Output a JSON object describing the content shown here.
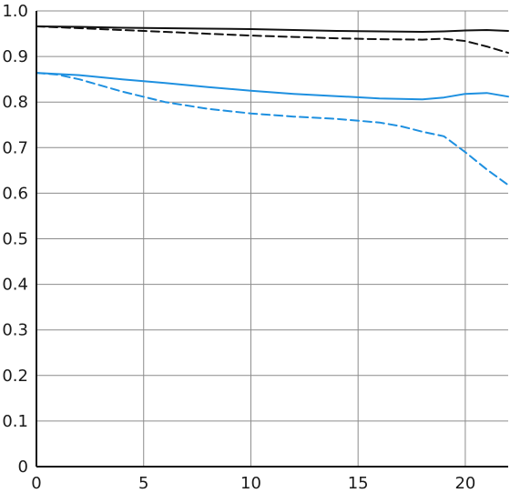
{
  "chart_data": {
    "type": "line",
    "title": "",
    "xlabel": "",
    "ylabel": "",
    "xlim": [
      0,
      22
    ],
    "ylim": [
      0,
      1.0
    ],
    "grid": true,
    "legend": "none",
    "x_ticks": [
      0,
      5,
      10,
      15,
      20
    ],
    "x_tick_labels": [
      "0",
      "5",
      "10",
      "15",
      "20"
    ],
    "y_ticks": [
      0,
      0.1,
      0.2,
      0.3,
      0.4,
      0.5,
      0.6,
      0.7,
      0.8,
      0.9,
      1.0
    ],
    "y_tick_labels": [
      "0",
      "0.1",
      "0.2",
      "0.3",
      "0.4",
      "0.5",
      "0.6",
      "0.7",
      "0.8",
      "0.9",
      "1.0"
    ],
    "series": [
      {
        "color": "#111111",
        "dash": "solid",
        "points": [
          [
            0,
            0.966
          ],
          [
            2,
            0.965
          ],
          [
            4,
            0.963
          ],
          [
            6,
            0.962
          ],
          [
            8,
            0.961
          ],
          [
            10,
            0.96
          ],
          [
            12,
            0.958
          ],
          [
            14,
            0.956
          ],
          [
            16,
            0.955
          ],
          [
            18,
            0.954
          ],
          [
            19,
            0.955
          ],
          [
            20,
            0.957
          ],
          [
            21,
            0.958
          ],
          [
            22,
            0.956
          ]
        ]
      },
      {
        "color": "#111111",
        "dash": "dashed",
        "points": [
          [
            0,
            0.966
          ],
          [
            2,
            0.962
          ],
          [
            4,
            0.958
          ],
          [
            6,
            0.954
          ],
          [
            8,
            0.95
          ],
          [
            10,
            0.946
          ],
          [
            12,
            0.943
          ],
          [
            14,
            0.94
          ],
          [
            16,
            0.938
          ],
          [
            18,
            0.937
          ],
          [
            19,
            0.939
          ],
          [
            20,
            0.934
          ],
          [
            21,
            0.922
          ],
          [
            22,
            0.908
          ]
        ]
      },
      {
        "color": "#1e90e0",
        "dash": "solid",
        "points": [
          [
            0,
            0.864
          ],
          [
            2,
            0.859
          ],
          [
            4,
            0.85
          ],
          [
            6,
            0.842
          ],
          [
            8,
            0.833
          ],
          [
            10,
            0.825
          ],
          [
            12,
            0.818
          ],
          [
            14,
            0.813
          ],
          [
            16,
            0.808
          ],
          [
            18,
            0.806
          ],
          [
            19,
            0.81
          ],
          [
            20,
            0.818
          ],
          [
            21,
            0.82
          ],
          [
            22,
            0.812
          ]
        ]
      },
      {
        "color": "#1e90e0",
        "dash": "dashed",
        "points": [
          [
            0,
            0.864
          ],
          [
            1,
            0.86
          ],
          [
            2,
            0.85
          ],
          [
            4,
            0.823
          ],
          [
            6,
            0.8
          ],
          [
            8,
            0.785
          ],
          [
            10,
            0.775
          ],
          [
            12,
            0.768
          ],
          [
            14,
            0.763
          ],
          [
            16,
            0.755
          ],
          [
            17,
            0.747
          ],
          [
            18,
            0.735
          ],
          [
            19,
            0.725
          ],
          [
            20,
            0.69
          ],
          [
            21,
            0.652
          ],
          [
            22,
            0.618
          ]
        ]
      }
    ]
  }
}
